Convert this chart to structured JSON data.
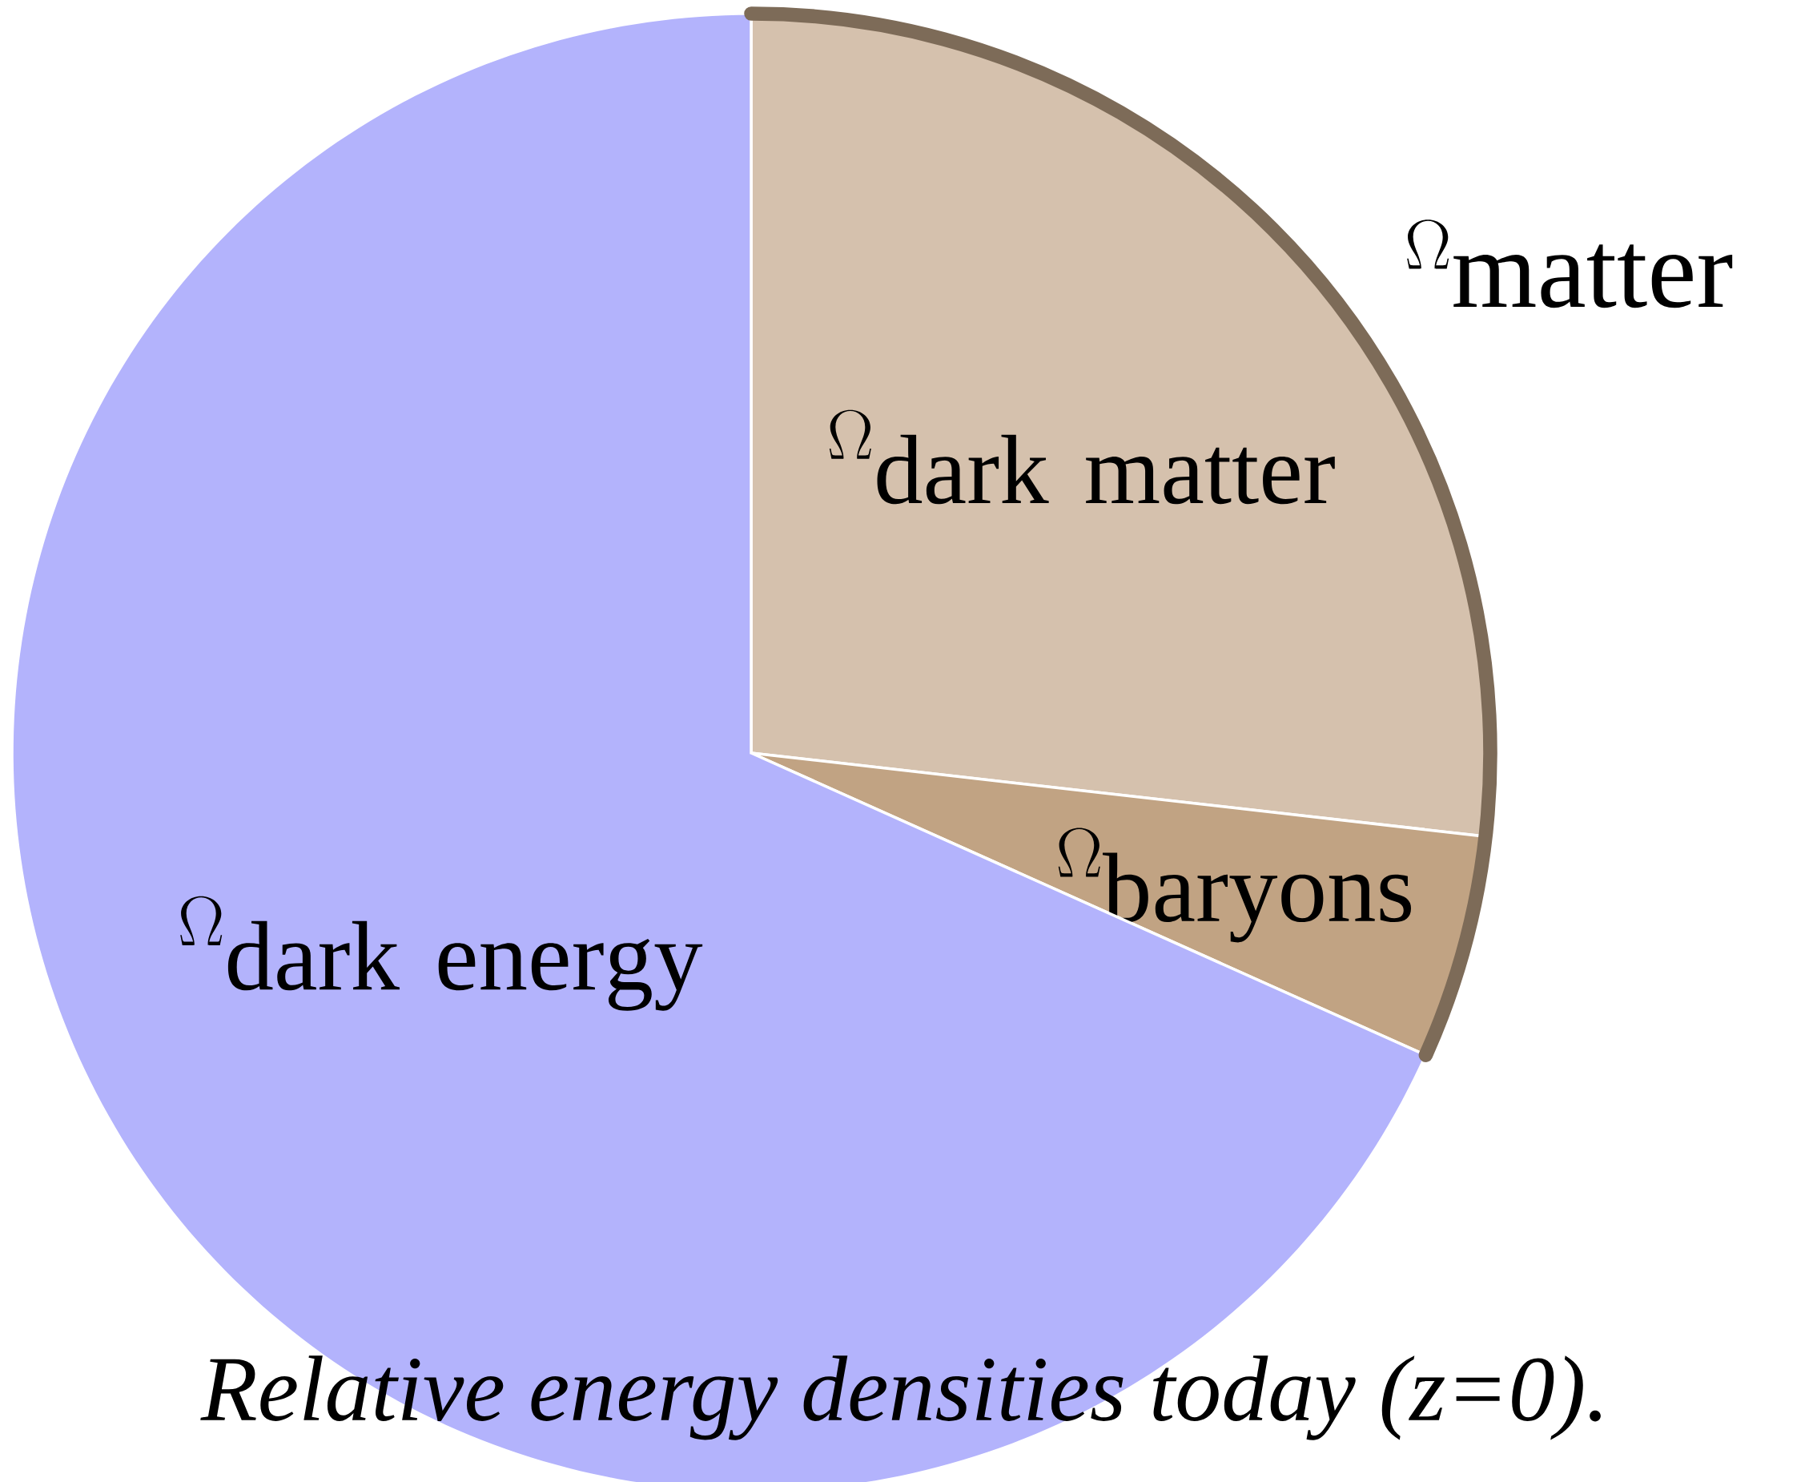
{
  "chart_data": {
    "type": "pie",
    "categories": [
      "\\Omega_{\\mathrm{dark\\ matter}}",
      "\\Omega_{\\mathrm{baryons}}",
      "\\Omega_{\\mathrm{dark\\ energy}}"
    ],
    "values": [
      26.8,
      4.9,
      68.3
    ],
    "colors": [
      "#d5c1ad",
      "#c1a383",
      "#b3b3fc"
    ],
    "annotations": [
      "\\Omega_{\\mathrm{matter}}",
      "*Relative energy densities today (z=0).*"
    ]
  }
}
